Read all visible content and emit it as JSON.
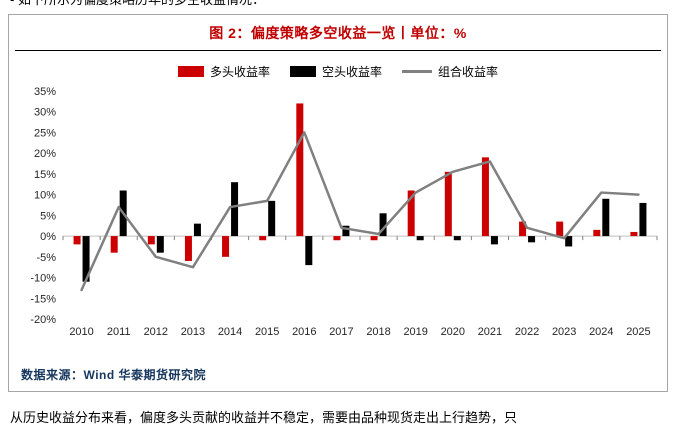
{
  "page": {
    "top_cropped_text": "- 如下所示为偏度策略历年的多空收益情况：",
    "bottom_cropped_text": "从历史收益分布来看，偏度多头贡献的收益并不稳定，需要由品种现货走出上行趋势，只"
  },
  "chart": {
    "title": "图 2：偏度策略多空收益一览丨单位：%",
    "source": "数据来源：Wind 华泰期货研究院",
    "legend": [
      "多头收益率",
      "空头收益率",
      "组合收益率"
    ],
    "colors": {
      "long": "#cc0000",
      "short": "#000000",
      "combo": "#808080",
      "title": "#c00000",
      "axis_text": "#262626",
      "zero_line": "#bfbfbf",
      "tick": "#808080"
    }
  },
  "chart_data": {
    "type": "bar",
    "title": "图 2：偏度策略多空收益一览丨单位：%",
    "categories": [
      2010,
      2011,
      2012,
      2013,
      2014,
      2015,
      2016,
      2017,
      2018,
      2019,
      2020,
      2021,
      2022,
      2023,
      2024,
      2025
    ],
    "series": [
      {
        "name": "多头收益率",
        "type": "bar",
        "color": "#cc0000",
        "values": [
          -2,
          -4,
          -2,
          -6,
          -5,
          -1,
          32,
          -1,
          -1,
          11,
          15.5,
          19,
          3.5,
          3.5,
          1.5,
          1
        ]
      },
      {
        "name": "空头收益率",
        "type": "bar",
        "color": "#000000",
        "values": [
          -11,
          11,
          -4,
          3,
          13,
          8.5,
          -7,
          2.5,
          5.5,
          -1,
          -1,
          -2,
          -1.5,
          -2.5,
          9,
          8
        ]
      },
      {
        "name": "组合收益率",
        "type": "line",
        "color": "#808080",
        "values": [
          -13,
          7,
          -5,
          -7.5,
          7,
          8.5,
          25,
          2,
          0.5,
          10.5,
          15.5,
          18,
          2,
          -0.5,
          10.5,
          10
        ]
      }
    ],
    "xlabel": "",
    "ylabel": "",
    "ylim": [
      -20,
      35
    ],
    "ytick_step": 5,
    "ytick_format": "percent",
    "grid": false,
    "legend_position": "top-center"
  }
}
